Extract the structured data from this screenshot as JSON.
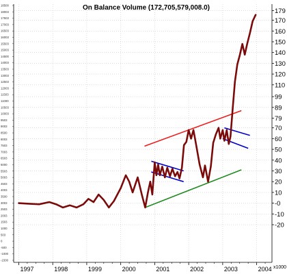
{
  "chart_data": {
    "type": "line",
    "title": "On Balance Volume (172,705,579,008.0)",
    "x_tick_labels": [
      "1997",
      "1998",
      "1999",
      "2000",
      "2001",
      "2002",
      "2003",
      "2004"
    ],
    "x_range": [
      1996.85,
      2004.45
    ],
    "y_range": [
      -55,
      185
    ],
    "right_tick_values": [
      179,
      170,
      160,
      150,
      140,
      130,
      120,
      110,
      99,
      89,
      79,
      70,
      60,
      50,
      40,
      30,
      20,
      10,
      0,
      -10,
      -20
    ],
    "right_tick_labels": [
      "179",
      "170",
      "160",
      "150",
      "140",
      "130",
      "120",
      "110",
      "99",
      "89",
      "79",
      "70",
      "60",
      "50",
      "40",
      "30",
      "20",
      "10",
      "-0",
      "-10",
      "-20"
    ],
    "right_axis_unit": "x1000",
    "left_axis_labels": [
      "18500",
      "18003",
      "17503",
      "17003",
      "16503",
      "16003",
      "15503",
      "15003",
      "14500",
      "14003",
      "13503",
      "13003",
      "12503",
      "12003",
      "11503",
      "11000",
      "10503",
      "10003",
      "9503",
      "9003",
      "8500",
      "8003",
      "7503",
      "7003",
      "6503",
      "6000",
      "5503",
      "5003",
      "4503",
      "4003",
      "3500",
      "3003",
      "2503",
      "2003",
      "1503",
      "1000",
      "503",
      "0",
      "-500",
      "-1000",
      "-1500"
    ],
    "series": [
      {
        "name": "",
        "color": "#7b0a0a",
        "points": [
          [
            1997.0,
            0
          ],
          [
            1997.3,
            -0.5
          ],
          [
            1997.6,
            -1
          ],
          [
            1997.9,
            1
          ],
          [
            1998.1,
            -1
          ],
          [
            1998.3,
            -4
          ],
          [
            1998.5,
            -2
          ],
          [
            1998.7,
            -4
          ],
          [
            1998.9,
            -1
          ],
          [
            1999.05,
            4
          ],
          [
            1999.2,
            1
          ],
          [
            1999.35,
            8
          ],
          [
            1999.5,
            3
          ],
          [
            1999.65,
            -4
          ],
          [
            1999.8,
            2
          ],
          [
            2000.0,
            14
          ],
          [
            2000.15,
            26
          ],
          [
            2000.25,
            20
          ],
          [
            2000.35,
            10
          ],
          [
            2000.5,
            24
          ],
          [
            2000.62,
            8
          ],
          [
            2000.72,
            -4
          ],
          [
            2000.8,
            10
          ],
          [
            2000.87,
            20
          ],
          [
            2000.93,
            8
          ],
          [
            2001.0,
            38
          ],
          [
            2001.05,
            26
          ],
          [
            2001.1,
            36
          ],
          [
            2001.15,
            26
          ],
          [
            2001.22,
            34
          ],
          [
            2001.3,
            24
          ],
          [
            2001.37,
            33
          ],
          [
            2001.45,
            25
          ],
          [
            2001.52,
            32
          ],
          [
            2001.6,
            25
          ],
          [
            2001.67,
            29
          ],
          [
            2001.73,
            23
          ],
          [
            2001.8,
            33
          ],
          [
            2001.86,
            54
          ],
          [
            2001.93,
            57
          ],
          [
            2002.0,
            68
          ],
          [
            2002.07,
            60
          ],
          [
            2002.14,
            68
          ],
          [
            2002.22,
            54
          ],
          [
            2002.32,
            36
          ],
          [
            2002.42,
            24
          ],
          [
            2002.48,
            35
          ],
          [
            2002.57,
            20
          ],
          [
            2002.65,
            34
          ],
          [
            2002.72,
            56
          ],
          [
            2002.8,
            64
          ],
          [
            2002.88,
            70
          ],
          [
            2002.93,
            60
          ],
          [
            2003.0,
            68
          ],
          [
            2003.05,
            58
          ],
          [
            2003.12,
            68
          ],
          [
            2003.18,
            55
          ],
          [
            2003.23,
            62
          ],
          [
            2003.3,
            90
          ],
          [
            2003.36,
            113
          ],
          [
            2003.43,
            129
          ],
          [
            2003.5,
            137
          ],
          [
            2003.58,
            148
          ],
          [
            2003.65,
            138
          ],
          [
            2003.72,
            148
          ],
          [
            2003.8,
            158
          ],
          [
            2003.88,
            169
          ],
          [
            2003.97,
            175
          ]
        ]
      }
    ],
    "trendlines": [
      {
        "color": "#ee1c1c",
        "from": [
          2000.7,
          53
        ],
        "to": [
          2003.55,
          86
        ]
      },
      {
        "color": "#228b22",
        "from": [
          2000.72,
          -4
        ],
        "to": [
          2003.55,
          31
        ]
      },
      {
        "color": "#0000cc",
        "from": [
          2000.9,
          39
        ],
        "to": [
          2001.85,
          30
        ]
      },
      {
        "color": "#0000cc",
        "from": [
          2000.9,
          29
        ],
        "to": [
          2001.85,
          20
        ]
      },
      {
        "color": "#0000cc",
        "from": [
          2003.05,
          70
        ],
        "to": [
          2003.8,
          63
        ]
      },
      {
        "color": "#0000cc",
        "from": [
          2003.0,
          60
        ],
        "to": [
          2003.75,
          51
        ]
      }
    ],
    "grid": true,
    "legend": "none"
  }
}
